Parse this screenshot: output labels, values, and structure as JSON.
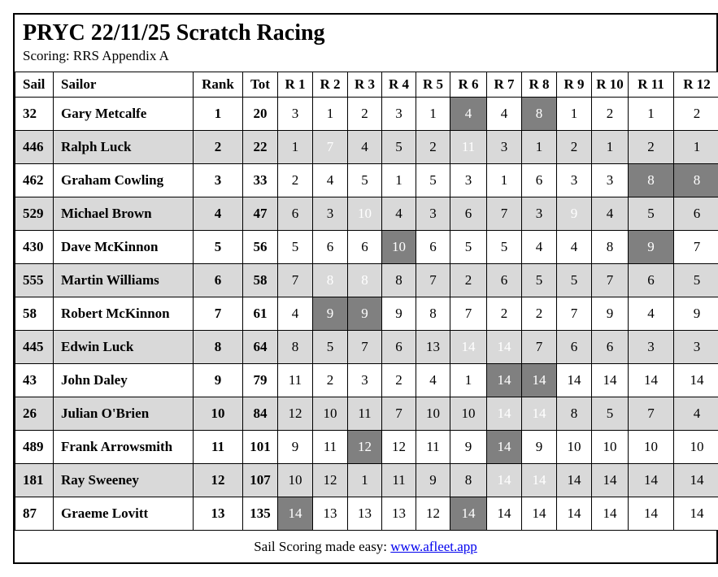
{
  "title": "PRYC 22/11/25 Scratch Racing",
  "subtitle": "Scoring: RRS Appendix A",
  "colors": {
    "zebra_row": "#d9d9d9",
    "discard_cell": "#808080",
    "discard_text": "#ffffff",
    "link": "#0000ee",
    "border": "#000000"
  },
  "table": {
    "headers": [
      "Sail",
      "Sailor",
      "Rank",
      "Tot",
      "R 1",
      "R 2",
      "R 3",
      "R 4",
      "R 5",
      "R 6",
      "R 7",
      "R 8",
      "R 9",
      "R 10",
      "R 11",
      "R 12"
    ],
    "rows": [
      {
        "sail": "32",
        "sailor": "Gary Metcalfe",
        "rank": "1",
        "tot": "20",
        "races": [
          3,
          1,
          2,
          3,
          1,
          4,
          4,
          8,
          1,
          2,
          1,
          2
        ],
        "discards": [
          5,
          7
        ]
      },
      {
        "sail": "446",
        "sailor": "Ralph Luck",
        "rank": "2",
        "tot": "22",
        "races": [
          1,
          7,
          4,
          5,
          2,
          11,
          3,
          1,
          2,
          1,
          2,
          1
        ],
        "discards": [
          1,
          5
        ]
      },
      {
        "sail": "462",
        "sailor": "Graham Cowling",
        "rank": "3",
        "tot": "33",
        "races": [
          2,
          4,
          5,
          1,
          5,
          3,
          1,
          6,
          3,
          3,
          8,
          8
        ],
        "discards": [
          10,
          11
        ]
      },
      {
        "sail": "529",
        "sailor": "Michael Brown",
        "rank": "4",
        "tot": "47",
        "races": [
          6,
          3,
          10,
          4,
          3,
          6,
          7,
          3,
          9,
          4,
          5,
          6
        ],
        "discards": [
          2,
          8
        ]
      },
      {
        "sail": "430",
        "sailor": "Dave McKinnon",
        "rank": "5",
        "tot": "56",
        "races": [
          5,
          6,
          6,
          10,
          6,
          5,
          5,
          4,
          4,
          8,
          9,
          7
        ],
        "discards": [
          3,
          10
        ]
      },
      {
        "sail": "555",
        "sailor": "Martin Williams",
        "rank": "6",
        "tot": "58",
        "races": [
          7,
          8,
          8,
          8,
          7,
          2,
          6,
          5,
          5,
          7,
          6,
          5
        ],
        "discards": [
          1,
          2
        ]
      },
      {
        "sail": "58",
        "sailor": "Robert McKinnon",
        "rank": "7",
        "tot": "61",
        "races": [
          4,
          9,
          9,
          9,
          8,
          7,
          2,
          2,
          7,
          9,
          4,
          9
        ],
        "discards": [
          1,
          2
        ]
      },
      {
        "sail": "445",
        "sailor": "Edwin Luck",
        "rank": "8",
        "tot": "64",
        "races": [
          8,
          5,
          7,
          6,
          13,
          14,
          14,
          7,
          6,
          6,
          3,
          3
        ],
        "discards": [
          5,
          6
        ]
      },
      {
        "sail": "43",
        "sailor": "John Daley",
        "rank": "9",
        "tot": "79",
        "races": [
          11,
          2,
          3,
          2,
          4,
          1,
          14,
          14,
          14,
          14,
          14,
          14
        ],
        "discards": [
          6,
          7
        ]
      },
      {
        "sail": "26",
        "sailor": "Julian O'Brien",
        "rank": "10",
        "tot": "84",
        "races": [
          12,
          10,
          11,
          7,
          10,
          10,
          14,
          14,
          8,
          5,
          7,
          4
        ],
        "discards": [
          6,
          7
        ]
      },
      {
        "sail": "489",
        "sailor": "Frank Arrowsmith",
        "rank": "11",
        "tot": "101",
        "races": [
          9,
          11,
          12,
          12,
          11,
          9,
          14,
          9,
          10,
          10,
          10,
          10
        ],
        "discards": [
          2,
          6
        ]
      },
      {
        "sail": "181",
        "sailor": "Ray Sweeney",
        "rank": "12",
        "tot": "107",
        "races": [
          10,
          12,
          1,
          11,
          9,
          8,
          14,
          14,
          14,
          14,
          14,
          14
        ],
        "discards": [
          6,
          7
        ]
      },
      {
        "sail": "87",
        "sailor": "Graeme Lovitt",
        "rank": "13",
        "tot": "135",
        "races": [
          14,
          13,
          13,
          13,
          12,
          14,
          14,
          14,
          14,
          14,
          14,
          14
        ],
        "discards": [
          0,
          5
        ]
      }
    ]
  },
  "footer": {
    "text": "Sail Scoring made easy: ",
    "link": "www.afleet.app"
  }
}
